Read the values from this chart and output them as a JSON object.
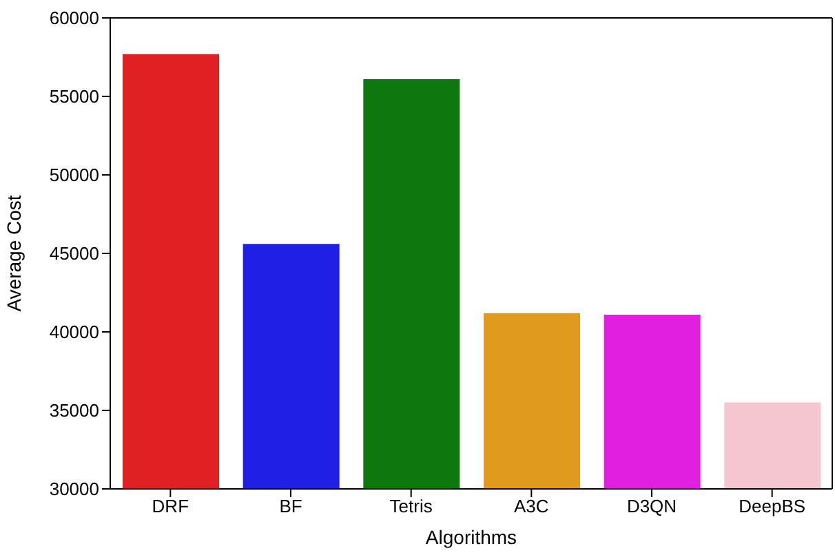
{
  "chart_data": {
    "type": "bar",
    "xlabel": "Algorithms",
    "ylabel": "Average Cost",
    "categories": [
      "DRF",
      "BF",
      "Tetris",
      "A3C",
      "D3QN",
      "DeepBS"
    ],
    "values": [
      57700,
      45600,
      56100,
      41200,
      41100,
      35500
    ],
    "colors": [
      "#e02022",
      "#1f1fe6",
      "#0e780e",
      "#e09b1f",
      "#e01fe0",
      "#f5c6cf"
    ],
    "ylim": [
      30000,
      60000
    ],
    "yticks": [
      30000,
      35000,
      40000,
      45000,
      50000,
      55000,
      60000
    ],
    "grid": false,
    "legend": false
  }
}
